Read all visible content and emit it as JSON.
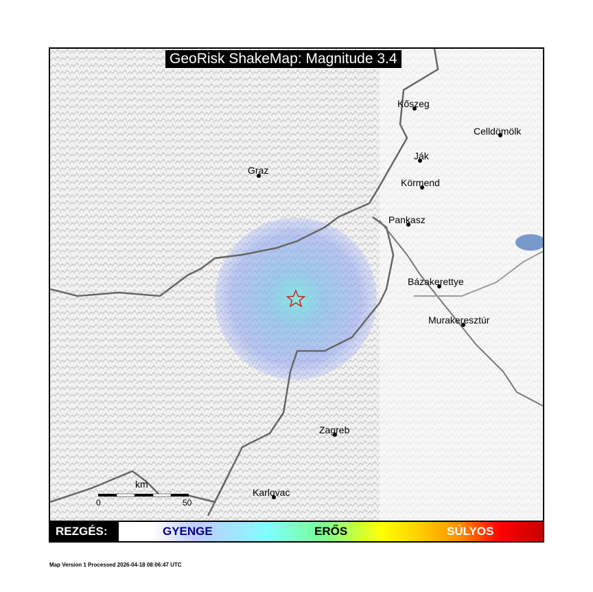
{
  "title": "GeoRisk ShakeMap: Magnitude 3.4",
  "cities": [
    {
      "name": "Kőszeg"
    },
    {
      "name": "Celldömölk"
    },
    {
      "name": "Ják"
    },
    {
      "name": "Körmend"
    },
    {
      "name": "Graz"
    },
    {
      "name": "Pankasz"
    },
    {
      "name": "Bázakerettye"
    },
    {
      "name": "Murakeresztúr"
    },
    {
      "name": "Zagreb"
    },
    {
      "name": "Karlovac"
    }
  ],
  "epicenter": {
    "icon": "star-icon",
    "color": "#d42020"
  },
  "scale_bar": {
    "unit": "km",
    "start": "0",
    "end": "50"
  },
  "legend": {
    "label": "REZGÉS:",
    "weak": "GYENGE",
    "strong": "ERŐS",
    "severe": "SÚLYOS",
    "colors": {
      "weak": "#000080",
      "strong": "#000000",
      "severe": "#ffffff"
    }
  },
  "footer": "Map Version 1 Processed 2026-04-18 08:06:47 UTC"
}
